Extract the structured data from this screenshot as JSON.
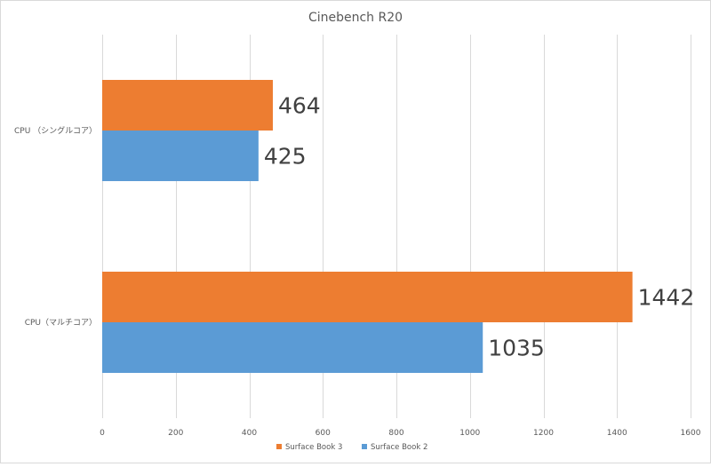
{
  "chart_data": {
    "type": "bar",
    "orientation": "horizontal",
    "title": "Cinebench R20",
    "categories": [
      "CPU （シングルコア）",
      "CPU（マルチコア）"
    ],
    "series": [
      {
        "name": "Surface Book 3",
        "color": "#ed7d31",
        "values": [
          464,
          1442
        ]
      },
      {
        "name": "Surface Book 2",
        "color": "#5b9bd5",
        "values": [
          425,
          1035
        ]
      }
    ],
    "xlim": [
      0,
      1600
    ],
    "x_ticks": [
      0,
      200,
      400,
      600,
      800,
      1000,
      1200,
      1400,
      1600
    ],
    "grid": true,
    "legend_position": "bottom",
    "colors": {
      "grid": "#d9d9d9",
      "axis_text": "#595959",
      "label_text": "#404040"
    }
  }
}
